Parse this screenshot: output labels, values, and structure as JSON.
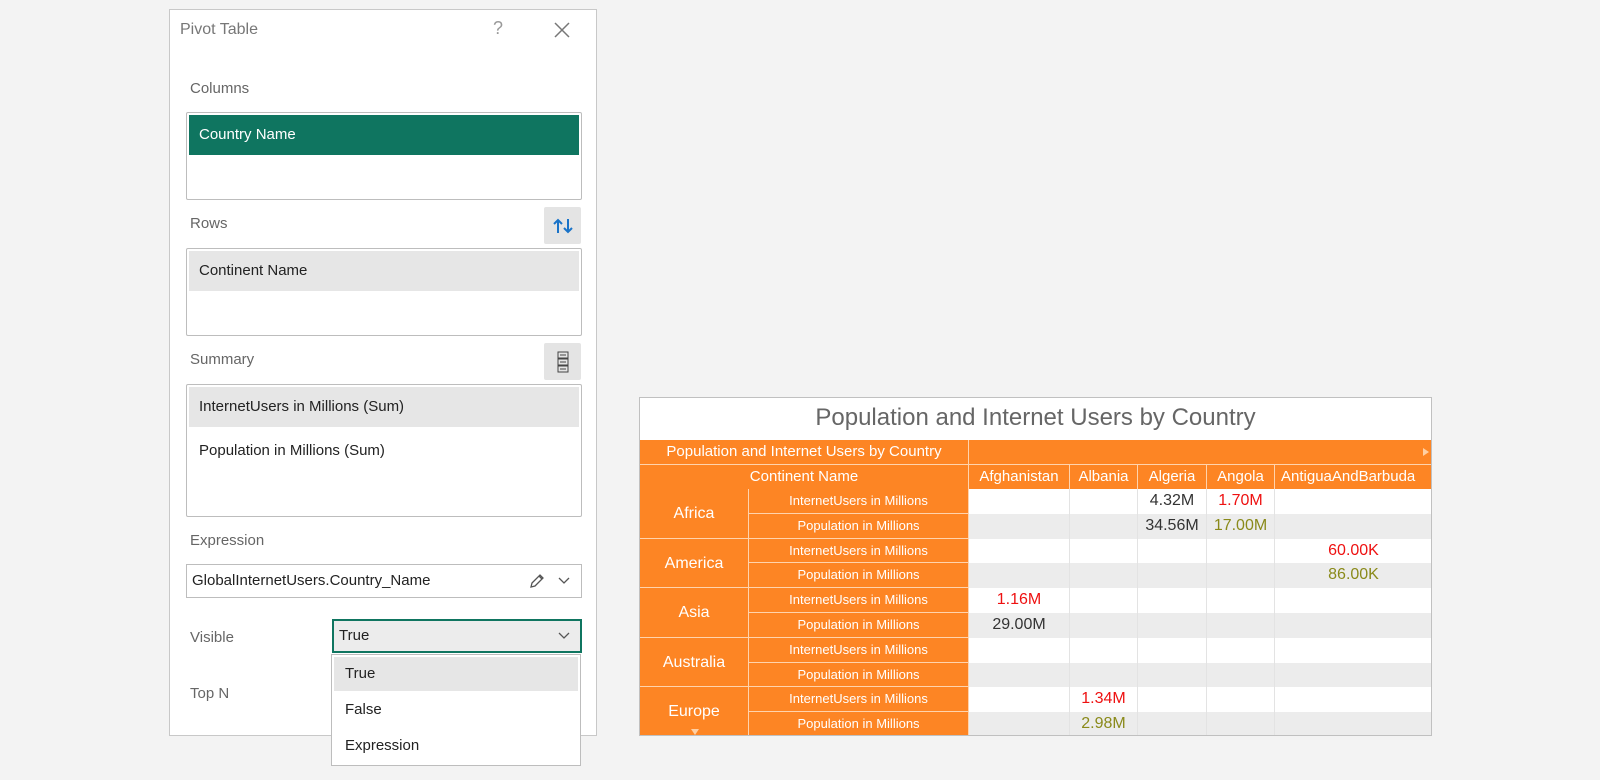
{
  "panel": {
    "title": "Pivot Table",
    "help_glyph": "?",
    "columns_label": "Columns",
    "columns_items": [
      "Country Name"
    ],
    "rows_label": "Rows",
    "rows_items": [
      "Continent Name"
    ],
    "summary_label": "Summary",
    "summary_items": [
      "InternetUsers in Millions (Sum)",
      "Population in Millions (Sum)"
    ],
    "expression_label": "Expression",
    "expression_value": "GlobalInternetUsers.Country_Name",
    "visible_label": "Visible",
    "visible_value": "True",
    "topn_label": "Top N",
    "visible_options": [
      "True",
      "False",
      "Expression"
    ],
    "accent_color": "#0f7560"
  },
  "pivot": {
    "title": "Population and Internet Users by Country",
    "header_caption": "Population and Internet Users by Country",
    "row_header": "Continent Name",
    "countries": [
      "Afghanistan",
      "Albania",
      "Algeria",
      "Angola",
      "AntiguaAndBarbuda"
    ],
    "measures": [
      "InternetUsers in Millions",
      "Population in Millions"
    ],
    "continents": [
      {
        "name": "Africa",
        "cells": [
          [
            "",
            "",
            "4.32M",
            "1.70M",
            ""
          ],
          [
            "",
            "",
            "34.56M",
            "17.00M",
            ""
          ]
        ]
      },
      {
        "name": "America",
        "cells": [
          [
            "",
            "",
            "",
            "",
            "60.00K"
          ],
          [
            "",
            "",
            "",
            "",
            "86.00K"
          ]
        ]
      },
      {
        "name": "Asia",
        "cells": [
          [
            "1.16M",
            "",
            "",
            "",
            ""
          ],
          [
            "29.00M",
            "",
            "",
            "",
            ""
          ]
        ]
      },
      {
        "name": "Australia",
        "cells": [
          [
            "",
            "",
            "",
            "",
            ""
          ],
          [
            "",
            "",
            "",
            "",
            ""
          ]
        ]
      },
      {
        "name": "Europe",
        "cells": [
          [
            "",
            "1.34M",
            "",
            "",
            ""
          ],
          [
            "",
            "2.98M",
            "",
            "",
            ""
          ]
        ]
      }
    ],
    "cell_colors": {
      "Africa": [
        [
          "",
          "",
          "#333333",
          "#ee1111",
          ""
        ],
        [
          "",
          "",
          "#333333",
          "#8a8a1a",
          ""
        ]
      ],
      "America": [
        [
          "",
          "",
          "",
          "",
          "#ee1111"
        ],
        [
          "",
          "",
          "",
          "",
          "#8a8a1a"
        ]
      ],
      "Asia": [
        [
          "#ee1111",
          "",
          "",
          "",
          ""
        ],
        [
          "#333333",
          "",
          "",
          "",
          ""
        ]
      ],
      "Australia": [
        [
          "",
          "",
          "",
          "",
          ""
        ],
        [
          "",
          "",
          "",
          "",
          ""
        ]
      ],
      "Europe": [
        [
          "",
          "#ee1111",
          "",
          "",
          ""
        ],
        [
          "",
          "#8a8a1a",
          "",
          "",
          ""
        ]
      ]
    },
    "header_color": "#fd8524"
  }
}
